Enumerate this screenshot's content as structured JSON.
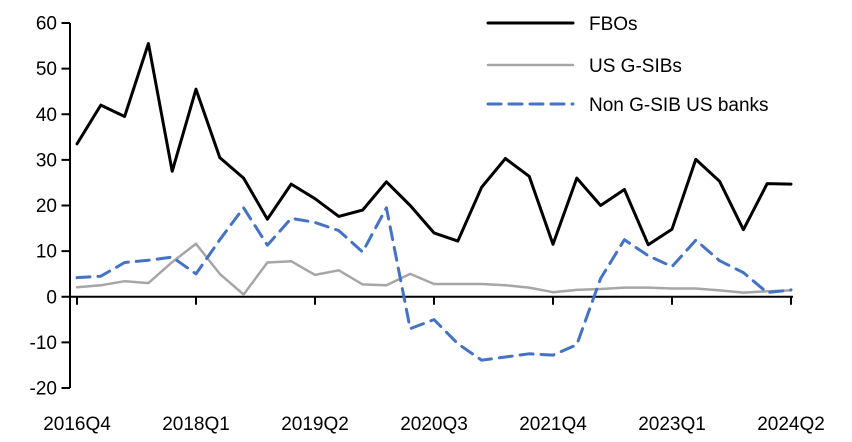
{
  "chart_data": {
    "type": "line",
    "title": "",
    "xlabel": "",
    "ylabel": "",
    "ylim": [
      -20,
      60
    ],
    "y_ticks": [
      60,
      50,
      40,
      30,
      20,
      10,
      0,
      -10,
      -20
    ],
    "x_tick_labels": [
      "2016Q4",
      "2018Q1",
      "2019Q2",
      "2020Q3",
      "2021Q4",
      "2023Q1",
      "2024Q2"
    ],
    "x_tick_indices": [
      0,
      5,
      10,
      15,
      20,
      25,
      30
    ],
    "categories": [
      "2016Q4",
      "2017Q1",
      "2017Q2",
      "2017Q3",
      "2017Q4",
      "2018Q1",
      "2018Q2",
      "2018Q3",
      "2018Q4",
      "2019Q1",
      "2019Q2",
      "2019Q3",
      "2019Q4",
      "2020Q1",
      "2020Q2",
      "2020Q3",
      "2020Q4",
      "2021Q1",
      "2021Q2",
      "2021Q3",
      "2021Q4",
      "2022Q1",
      "2022Q2",
      "2022Q3",
      "2022Q4",
      "2023Q1",
      "2023Q2",
      "2023Q3",
      "2023Q4",
      "2024Q1",
      "2024Q2"
    ],
    "grid": false,
    "legend_position": "top-right",
    "axis_color": "#000000",
    "series": [
      {
        "name": "FBOs",
        "color": "#000000",
        "style": "solid",
        "values": [
          33.5,
          42,
          39.5,
          55.5,
          27.5,
          45.5,
          30.5,
          26,
          17,
          24.7,
          21.5,
          17.6,
          19,
          25.2,
          20,
          14,
          12.2,
          24,
          30.3,
          26.4,
          11.5,
          26,
          20,
          23.5,
          11.4,
          14.8,
          30.1,
          25.3,
          14.7,
          24.8,
          24.7
        ]
      },
      {
        "name": "US G-SIBs",
        "color": "#a6a6a6",
        "style": "solid",
        "values": [
          2.1,
          2.5,
          3.4,
          3,
          7.6,
          11.6,
          5,
          0.5,
          7.5,
          7.8,
          4.8,
          5.8,
          2.7,
          2.5,
          5,
          2.8,
          2.8,
          2.8,
          2.5,
          2,
          1,
          1.5,
          1.7,
          2,
          2,
          1.8,
          1.8,
          1.4,
          0.9,
          1.2,
          1.4
        ]
      },
      {
        "name": "Non G-SIB US banks",
        "color": "#4472c4",
        "style": "dashed",
        "values": [
          4.2,
          4.5,
          7.5,
          8,
          8.7,
          5,
          12.5,
          19.5,
          11.3,
          17.2,
          16.3,
          14.5,
          9.8,
          19.5,
          -7,
          -5,
          -10.3,
          -13.9,
          -13.2,
          -12.5,
          -12.8,
          -10.5,
          4,
          12.5,
          9,
          6.6,
          12.4,
          7.9,
          5.3,
          0.9,
          1.5
        ]
      }
    ]
  }
}
